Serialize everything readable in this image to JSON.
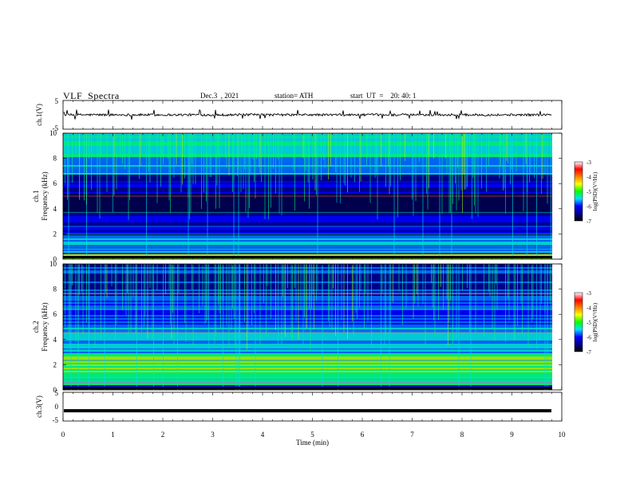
{
  "header": {
    "title": "VLF  Spectra",
    "date": "Dec.3  , 2021",
    "station": "station= ATH",
    "start": "start  UT  =    20: 40: 1"
  },
  "chart_data": [
    {
      "type": "line",
      "panel": "ch1-waveform",
      "ylabel": "ch.1(V)",
      "ylim": [
        -5,
        5
      ],
      "yticks": [
        "5",
        "-5"
      ],
      "baseline_volts": 0,
      "noise_amplitude_volts": 0.6,
      "x_range_min": [
        0,
        9.8
      ],
      "color": "#000000"
    },
    {
      "type": "heatmap",
      "panel": "ch1-spectrogram",
      "ylabel": "ch.1\nFrequency  (kHz)",
      "ylim": [
        0,
        10
      ],
      "yticks": [
        "0",
        "2",
        "4",
        "6",
        "8",
        "10"
      ],
      "x_range_min": [
        0,
        9.8
      ],
      "colorbar": {
        "label": "log(PSD)(V²/Hz)",
        "ticks": [
          "-3",
          "-4",
          "-5",
          "-6",
          "-7"
        ],
        "range": [
          -7,
          -3
        ]
      }
    },
    {
      "type": "heatmap",
      "panel": "ch2-spectrogram",
      "ylabel": "ch.2\nFrequency  (kHz)",
      "ylim": [
        0,
        10
      ],
      "yticks": [
        "0",
        "2",
        "4",
        "6",
        "8",
        "10"
      ],
      "x_range_min": [
        0,
        9.8
      ],
      "colorbar": {
        "label": "log(PSD)(V²/Hz)",
        "ticks": [
          "-3",
          "-4",
          "-5",
          "-6",
          "-7"
        ],
        "range": [
          -7,
          -3
        ]
      }
    },
    {
      "type": "line",
      "panel": "ch3-waveform",
      "ylabel": "ch.3(V)",
      "ylim": [
        -5,
        5
      ],
      "yticks": [
        "5",
        "0",
        "-5"
      ],
      "baseline_volts": -1.5,
      "x_range_min": [
        0,
        9.8
      ],
      "color": "#000000"
    }
  ],
  "xaxis": {
    "label": "Time  (min)",
    "range": [
      0,
      10
    ],
    "ticks": [
      "0",
      "1",
      "2",
      "3",
      "4",
      "5",
      "6",
      "7",
      "8",
      "9",
      "10"
    ]
  },
  "colorscale": [
    "#000000",
    "#00008b",
    "#0000ff",
    "#0070ff",
    "#00e0e0",
    "#00ff80",
    "#a0ff00",
    "#ffff00",
    "#ff8000",
    "#ff0000",
    "#ffffff"
  ]
}
